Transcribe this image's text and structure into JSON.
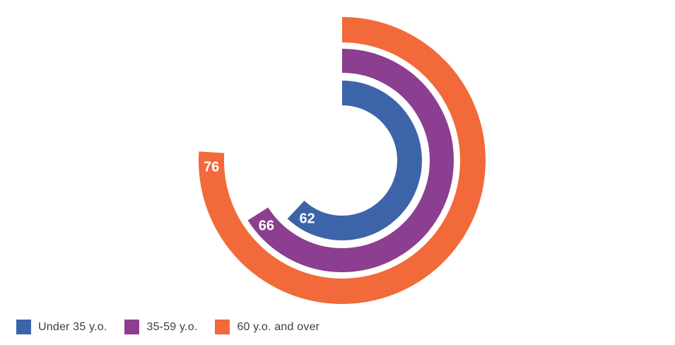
{
  "chart_data": {
    "type": "bar",
    "variant": "radial-concentric-arcs",
    "title": "",
    "xlabel": "",
    "ylabel": "",
    "categories": [
      "Under 35 y.o.",
      "35-59 y.o.",
      "60 y.o. and over"
    ],
    "values": [
      62,
      66,
      76
    ],
    "colors": [
      "#3d64a8",
      "#8c3e90",
      "#f2693a"
    ],
    "value_scale": {
      "min": 0,
      "full_circle_value": 100
    },
    "start_angle_deg": 0,
    "sweep_direction": "clockwise",
    "value_label_color": "#ffffff",
    "grid": false,
    "legend_position": "bottom-left"
  },
  "legend": {
    "items": [
      {
        "label": "Under 35 y.o."
      },
      {
        "label": "35-59 y.o."
      },
      {
        "label": "60 y.o. and over"
      }
    ]
  }
}
